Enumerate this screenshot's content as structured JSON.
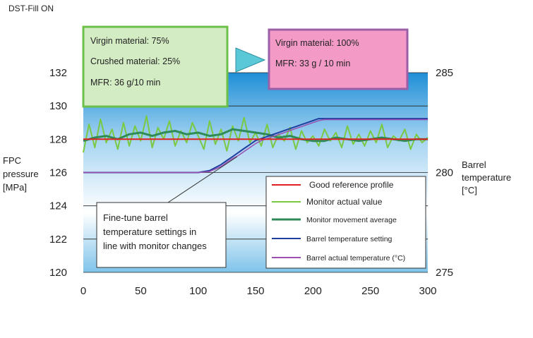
{
  "header": "DST-Fill ON",
  "left_axis_title": [
    "FPC",
    "pressure",
    "[MPa]"
  ],
  "right_axis_title": [
    "Barrel",
    "temperature",
    "[°C]"
  ],
  "boxes": {
    "green": [
      "Virgin material: 75%",
      "Crushed material: 25%",
      "MFR: 36 g/10 min"
    ],
    "pink": [
      "Virgin material: 100%",
      "MFR: 33 g / 10 min"
    ]
  },
  "annotation": [
    "Fine-tune barrel",
    "temperature settings in",
    "line with monitor changes"
  ],
  "legend": [
    "Good reference profile",
    "Monitor actual value",
    "Monitor movement average",
    "Barrel temperature setting",
    "Barrel actual temperature (°C)"
  ],
  "colors": {
    "reference": "#e02020",
    "monitor_actual": "#7ac943",
    "monitor_average": "#2e8b57",
    "barrel_setting": "#1f3fa0",
    "barrel_actual": "#9b4fb0",
    "green_box_fill": "#d4ecc4",
    "green_box_border": "#6cc04a",
    "pink_box_fill": "#f39ac7",
    "pink_box_border": "#9b5fa8",
    "arrow": "#5bc8d8"
  },
  "chart_data": {
    "type": "line",
    "x_ticks": [
      "0",
      "50",
      "100",
      "150",
      "200",
      "250",
      "300"
    ],
    "xlim": [
      0,
      300
    ],
    "ylim": [
      120,
      132
    ],
    "y_ticks": [
      "120",
      "122",
      "124",
      "126",
      "128",
      "130",
      "132"
    ],
    "y2lim": [
      275,
      285
    ],
    "y2_ticks": [
      "275",
      "280",
      "285"
    ],
    "grid": "horizontal",
    "legend_position": "lower-right",
    "series": [
      {
        "name": "Good reference profile",
        "axis": "left",
        "x": [
          0,
          300
        ],
        "y": [
          128,
          128
        ]
      },
      {
        "name": "Monitor actual value",
        "axis": "left",
        "x": [
          0,
          5,
          10,
          15,
          20,
          25,
          30,
          35,
          40,
          45,
          50,
          55,
          60,
          65,
          70,
          75,
          80,
          85,
          90,
          95,
          100,
          105,
          110,
          115,
          120,
          125,
          130,
          135,
          140,
          145,
          150,
          155,
          160,
          165,
          170,
          175,
          180,
          185,
          190,
          195,
          200,
          205,
          210,
          215,
          220,
          225,
          230,
          235,
          240,
          245,
          250,
          255,
          260,
          265,
          270,
          275,
          280,
          285,
          290,
          295,
          300
        ],
        "y": [
          127.2,
          128.9,
          127.5,
          129.2,
          127.8,
          128.6,
          127.4,
          129.0,
          127.6,
          128.8,
          127.9,
          129.4,
          127.5,
          128.7,
          128.0,
          129.1,
          127.6,
          128.5,
          127.8,
          129.0,
          128.2,
          127.4,
          129.1,
          127.7,
          128.6,
          127.3,
          128.8,
          127.9,
          129.3,
          127.8,
          128.4,
          127.6,
          128.9,
          127.5,
          128.3,
          127.9,
          128.7,
          127.4,
          128.5,
          127.8,
          128.2,
          127.6,
          128.6,
          127.9,
          128.4,
          127.5,
          128.8,
          127.7,
          128.3,
          127.6,
          128.5,
          127.8,
          128.9,
          127.5,
          128.2,
          127.9,
          128.6,
          127.4,
          128.3,
          127.8,
          128.1
        ]
      },
      {
        "name": "Monitor movement average",
        "axis": "left",
        "x": [
          0,
          10,
          20,
          30,
          40,
          50,
          60,
          70,
          80,
          90,
          100,
          110,
          120,
          130,
          140,
          150,
          160,
          170,
          180,
          190,
          200,
          210,
          220,
          230,
          240,
          250,
          260,
          270,
          280,
          290,
          300
        ],
        "y": [
          127.9,
          128.1,
          128.2,
          128.0,
          128.3,
          128.4,
          128.2,
          128.4,
          128.5,
          128.3,
          128.4,
          128.2,
          128.3,
          128.6,
          128.5,
          128.4,
          128.3,
          128.1,
          128.2,
          128.0,
          127.9,
          127.9,
          128.1,
          128.0,
          127.9,
          128.0,
          128.1,
          128.0,
          127.9,
          128.0,
          128.0
        ]
      },
      {
        "name": "Barrel temperature setting",
        "axis": "right",
        "x": [
          0,
          100,
          110,
          120,
          125,
          130,
          135,
          140,
          145,
          150,
          155,
          160,
          165,
          170,
          175,
          180,
          185,
          190,
          195,
          200,
          205,
          210,
          300
        ],
        "y": [
          280.0,
          280.0,
          280.1,
          280.4,
          280.6,
          280.8,
          281.0,
          281.2,
          281.4,
          281.6,
          281.7,
          281.8,
          281.9,
          282.0,
          282.1,
          282.2,
          282.3,
          282.4,
          282.5,
          282.6,
          282.7,
          282.7,
          282.7
        ]
      },
      {
        "name": "Barrel actual temperature (°C)",
        "axis": "right",
        "x": [
          0,
          100,
          110,
          120,
          125,
          130,
          135,
          140,
          145,
          150,
          155,
          160,
          165,
          170,
          175,
          180,
          185,
          190,
          195,
          200,
          205,
          210,
          300
        ],
        "y": [
          280.0,
          280.0,
          280.05,
          280.3,
          280.5,
          280.7,
          280.85,
          281.05,
          281.25,
          281.45,
          281.6,
          281.7,
          281.8,
          281.9,
          282.0,
          282.1,
          282.2,
          282.3,
          282.4,
          282.5,
          282.6,
          282.65,
          282.65
        ]
      }
    ]
  }
}
